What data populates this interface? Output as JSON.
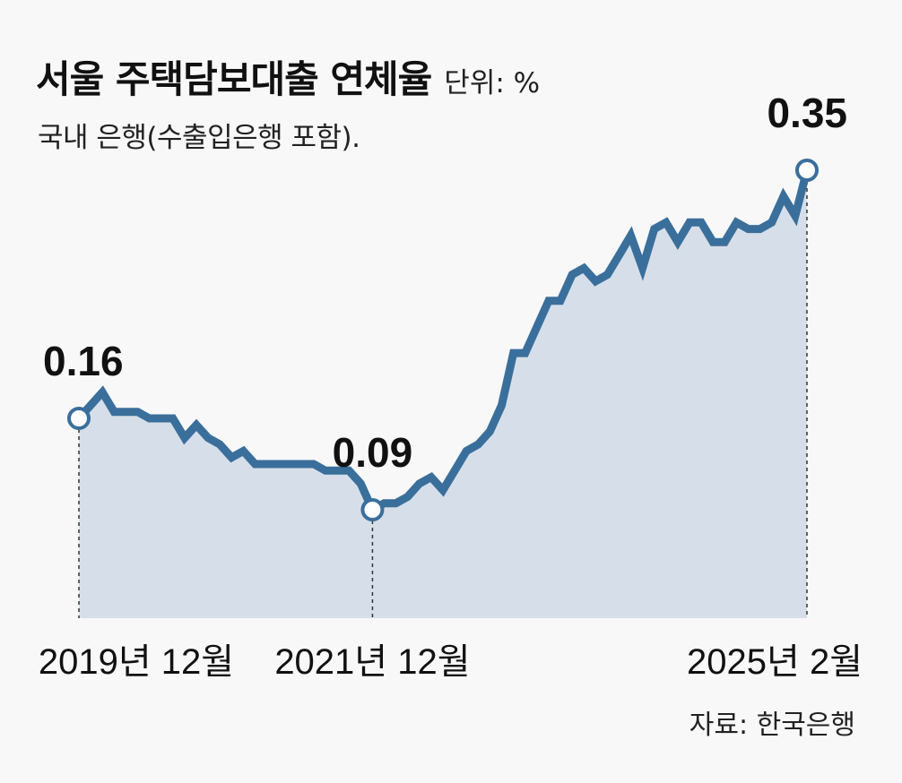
{
  "header": {
    "title": "서울 주택담보대출 연체율",
    "unit": "단위: %",
    "subtitle": "국내 은행(수출입은행 포함)."
  },
  "source": "자료: 한국은행",
  "colors": {
    "line": "#3a6f9c",
    "area": "#d6dfe9",
    "marker_fill": "#ffffff",
    "background": "#f8f8f8"
  },
  "chart_data": {
    "type": "area",
    "x_tick_labels": [
      "2019년 12월",
      "2021년 12월",
      "2025년 2월"
    ],
    "ylim": [
      0,
      0.4
    ],
    "grid": false,
    "legend": "none",
    "series": [
      {
        "values": [
          0.16,
          0.17,
          0.18,
          0.165,
          0.165,
          0.165,
          0.16,
          0.16,
          0.16,
          0.145,
          0.155,
          0.145,
          0.14,
          0.13,
          0.135,
          0.125,
          0.125,
          0.125,
          0.125,
          0.125,
          0.125,
          0.12,
          0.12,
          0.12,
          0.11,
          0.09,
          0.095,
          0.095,
          0.1,
          0.11,
          0.115,
          0.105,
          0.12,
          0.135,
          0.14,
          0.15,
          0.17,
          0.21,
          0.21,
          0.23,
          0.25,
          0.25,
          0.27,
          0.275,
          0.265,
          0.27,
          0.285,
          0.3,
          0.275,
          0.305,
          0.31,
          0.295,
          0.31,
          0.31,
          0.295,
          0.295,
          0.31,
          0.305,
          0.305,
          0.31,
          0.33,
          0.315,
          0.35
        ]
      }
    ],
    "annotations": [
      {
        "label": "0.16",
        "index": 0,
        "value": 0.16
      },
      {
        "label": "0.09",
        "index": 25,
        "value": 0.09
      },
      {
        "label": "0.35",
        "index": 62,
        "value": 0.35
      }
    ]
  }
}
